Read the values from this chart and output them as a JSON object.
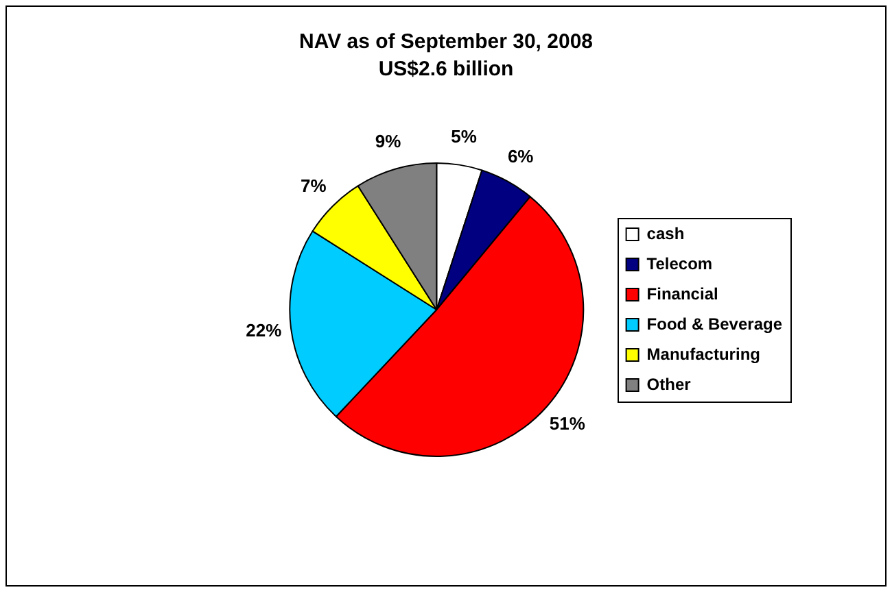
{
  "chart_data": {
    "type": "pie",
    "title": "NAV as of September 30, 2008",
    "subtitle": "US$2.6 billion",
    "categories": [
      "cash",
      "Telecom",
      "Financial",
      "Food & Beverage",
      "Manufacturing",
      "Other"
    ],
    "values": [
      5,
      6,
      51,
      22,
      7,
      9
    ],
    "colors": [
      "#ffffff",
      "#000080",
      "#ff0000",
      "#00ccff",
      "#ffff00",
      "#808080"
    ],
    "value_labels": [
      "5%",
      "6%",
      "51%",
      "22%",
      "7%",
      "9%"
    ],
    "legend": "right"
  }
}
